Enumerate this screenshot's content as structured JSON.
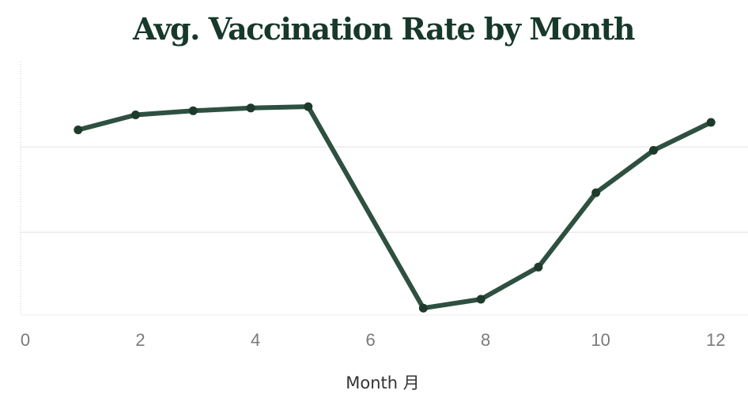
{
  "chart_data": {
    "type": "line",
    "title": "Avg. Vaccination Rate by Month",
    "xlabel": "Month 月",
    "ylabel": "",
    "x": [
      1,
      2,
      3,
      4,
      5,
      6,
      7,
      8,
      9,
      10,
      11,
      12
    ],
    "series": [
      {
        "values": [
          82.5,
          84.7,
          85.3,
          85.7,
          85.9,
          null,
          56.4,
          57.7,
          62.4,
          73.3,
          79.5,
          83.6
        ]
      }
    ],
    "connect_gaps": true,
    "xlim": [
      0,
      13
    ],
    "ylim": [
      55.5,
      92.5
    ],
    "xticks": [
      0,
      2,
      4,
      6,
      8,
      10,
      12
    ],
    "gridlines_y": [
      80,
      67.5
    ],
    "y_tick_labels_shown": false,
    "grid": true,
    "line_color": "#2e5040",
    "marker_color": "#1e3a2c"
  }
}
